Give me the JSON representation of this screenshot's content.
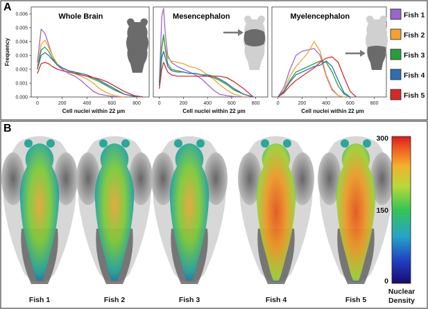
{
  "figure": {
    "panel_a_letter": "A",
    "panel_b_letter": "B",
    "legend": [
      {
        "label": "Fish 1",
        "color": "#9966cc"
      },
      {
        "label": "Fish 2",
        "color": "#f5a030"
      },
      {
        "label": "Fish 3",
        "color": "#2a9d3a"
      },
      {
        "label": "Fish 4",
        "color": "#2f6fb0"
      },
      {
        "label": "Fish 5",
        "color": "#d42a2a"
      }
    ],
    "fish_labels": [
      "Fish 1",
      "Fish 2",
      "Fish 3",
      "Fish 4",
      "Fish 5"
    ],
    "colorbar": {
      "ticks": [
        "300",
        "150",
        "0"
      ],
      "title_line1": "Nuclear",
      "title_line2": "Density",
      "icon": "colorbar-gradient"
    }
  },
  "chart_data": [
    {
      "type": "line",
      "title": "Whole Brain",
      "xlabel": "Cell nuclei within 22 µm",
      "ylabel": "Frequency",
      "xlim": [
        -50,
        900
      ],
      "ylim": [
        0,
        0.0065
      ],
      "xticks": [
        "0",
        "200",
        "400",
        "600",
        "800"
      ],
      "yticks": [
        "0.000",
        "0.001",
        "0.002",
        "0.003",
        "0.004",
        "0.005",
        "0.006"
      ],
      "xtick_values": [
        0,
        200,
        400,
        600,
        800
      ],
      "ytick_values": [
        0,
        0.001,
        0.002,
        0.003,
        0.004,
        0.005,
        0.006
      ],
      "series": [
        {
          "name": "Fish 1",
          "x": [
            0,
            30,
            60,
            90,
            120,
            160,
            200,
            250,
            300,
            350,
            400,
            450,
            500,
            560,
            620,
            700
          ],
          "y": [
            0.0025,
            0.0049,
            0.0046,
            0.0038,
            0.003,
            0.0023,
            0.002,
            0.0017,
            0.0015,
            0.0012,
            0.0008,
            0.0004,
            0.0002,
            0.0001,
            3e-05,
            0
          ]
        },
        {
          "name": "Fish 2",
          "x": [
            0,
            30,
            60,
            90,
            120,
            160,
            200,
            250,
            300,
            350,
            400,
            450,
            500,
            560,
            620,
            700
          ],
          "y": [
            0.0022,
            0.0038,
            0.0041,
            0.0036,
            0.003,
            0.0024,
            0.0021,
            0.0019,
            0.0017,
            0.0015,
            0.0013,
            0.001,
            0.0006,
            0.0003,
            0.0001,
            0
          ]
        },
        {
          "name": "Fish 3",
          "x": [
            0,
            30,
            60,
            90,
            120,
            160,
            200,
            250,
            300,
            350,
            400,
            450,
            500,
            560,
            620,
            700,
            780,
            850
          ],
          "y": [
            0.002,
            0.0034,
            0.0036,
            0.0033,
            0.0028,
            0.0023,
            0.0021,
            0.0019,
            0.0018,
            0.0016,
            0.0015,
            0.0013,
            0.0011,
            0.0008,
            0.0005,
            0.0002,
            5e-05,
            0
          ]
        },
        {
          "name": "Fish 4",
          "x": [
            0,
            30,
            60,
            90,
            120,
            160,
            200,
            250,
            300,
            350,
            400,
            450,
            500,
            560,
            620,
            700,
            780,
            850
          ],
          "y": [
            0.002,
            0.003,
            0.0032,
            0.003,
            0.0027,
            0.0023,
            0.0021,
            0.0019,
            0.0018,
            0.0017,
            0.0016,
            0.0014,
            0.0012,
            0.0009,
            0.0006,
            0.0002,
            5e-05,
            0
          ]
        },
        {
          "name": "Fish 5",
          "x": [
            0,
            30,
            60,
            90,
            120,
            160,
            200,
            250,
            300,
            350,
            400,
            450,
            500,
            560,
            620,
            700,
            780,
            850
          ],
          "y": [
            0.0017,
            0.0024,
            0.0025,
            0.0024,
            0.0022,
            0.002,
            0.0019,
            0.0018,
            0.0017,
            0.0016,
            0.0015,
            0.0014,
            0.0013,
            0.0011,
            0.0008,
            0.0004,
            0.0001,
            0
          ]
        }
      ]
    },
    {
      "type": "line",
      "title": "Mesencephalon",
      "xlabel": "Cell nuclei within 22 µm",
      "ylabel": "",
      "xlim": [
        -50,
        900
      ],
      "ylim": [
        0,
        0.0065
      ],
      "xticks": [
        "0",
        "200",
        "400",
        "600",
        "800"
      ],
      "yticks": [],
      "xtick_values": [
        0,
        200,
        400,
        600,
        800
      ],
      "ytick_values": [],
      "series": [
        {
          "name": "Fish 1",
          "x": [
            0,
            20,
            35,
            50,
            70,
            100,
            150,
            200,
            250,
            300,
            350,
            400,
            450,
            500,
            560,
            620,
            700
          ],
          "y": [
            0.001,
            0.0058,
            0.0064,
            0.0045,
            0.003,
            0.0025,
            0.0022,
            0.002,
            0.0018,
            0.0016,
            0.0013,
            0.0009,
            0.0005,
            0.0002,
            0.0001,
            3e-05,
            0
          ]
        },
        {
          "name": "Fish 2",
          "x": [
            0,
            20,
            35,
            50,
            70,
            100,
            150,
            200,
            250,
            300,
            350,
            400,
            450,
            500,
            560,
            620,
            700
          ],
          "y": [
            0.001,
            0.0035,
            0.0043,
            0.0036,
            0.0028,
            0.0026,
            0.0025,
            0.0024,
            0.0022,
            0.0021,
            0.0019,
            0.0016,
            0.0013,
            0.0009,
            0.0005,
            0.0002,
            0
          ]
        },
        {
          "name": "Fish 3",
          "x": [
            0,
            20,
            35,
            50,
            70,
            100,
            150,
            200,
            250,
            300,
            350,
            400,
            450,
            500,
            560,
            620,
            700,
            780
          ],
          "y": [
            0.001,
            0.0036,
            0.0045,
            0.0034,
            0.0024,
            0.002,
            0.0019,
            0.0018,
            0.0017,
            0.0017,
            0.0016,
            0.0015,
            0.0014,
            0.0012,
            0.0009,
            0.0005,
            0.0002,
            0
          ]
        },
        {
          "name": "Fish 4",
          "x": [
            0,
            20,
            35,
            50,
            70,
            100,
            150,
            200,
            250,
            300,
            350,
            400,
            450,
            500,
            560,
            620,
            700,
            780
          ],
          "y": [
            0.0008,
            0.0028,
            0.0033,
            0.0028,
            0.0022,
            0.0019,
            0.0018,
            0.0018,
            0.0017,
            0.0017,
            0.0016,
            0.0016,
            0.0015,
            0.0013,
            0.001,
            0.0006,
            0.0002,
            0
          ]
        },
        {
          "name": "Fish 5",
          "x": [
            0,
            20,
            35,
            50,
            70,
            100,
            150,
            200,
            250,
            300,
            350,
            400,
            450,
            500,
            560,
            620,
            700,
            780
          ],
          "y": [
            0.0006,
            0.002,
            0.0025,
            0.0022,
            0.0018,
            0.0016,
            0.0015,
            0.0015,
            0.0015,
            0.0015,
            0.0015,
            0.0015,
            0.0015,
            0.0015,
            0.0014,
            0.0011,
            0.0006,
            0
          ]
        }
      ]
    },
    {
      "type": "line",
      "title": "Myelencephalon",
      "xlabel": "Cell nuclei within 22 µm",
      "ylabel": "",
      "xlim": [
        -50,
        900
      ],
      "ylim": [
        0,
        0.0065
      ],
      "xticks": [
        "0",
        "200",
        "400",
        "600",
        "800"
      ],
      "yticks": [],
      "xtick_values": [
        0,
        200,
        400,
        600,
        800
      ],
      "ytick_values": [],
      "series": [
        {
          "name": "Fish 1",
          "x": [
            0,
            50,
            100,
            150,
            200,
            250,
            300,
            350,
            400,
            450,
            500,
            550
          ],
          "y": [
            0,
            0.0007,
            0.002,
            0.003,
            0.0033,
            0.0034,
            0.0035,
            0.003,
            0.0015,
            0.0005,
            0.0001,
            0
          ]
        },
        {
          "name": "Fish 2",
          "x": [
            0,
            50,
            100,
            150,
            200,
            250,
            300,
            350,
            400,
            450,
            500,
            550
          ],
          "y": [
            0,
            0.0005,
            0.0015,
            0.0022,
            0.0027,
            0.0032,
            0.004,
            0.0033,
            0.0016,
            0.0006,
            0.0001,
            0
          ]
        },
        {
          "name": "Fish 3",
          "x": [
            0,
            50,
            100,
            150,
            200,
            250,
            300,
            350,
            400,
            450,
            500,
            550,
            600
          ],
          "y": [
            0,
            0.0004,
            0.0012,
            0.0018,
            0.002,
            0.0022,
            0.0024,
            0.0026,
            0.0025,
            0.0018,
            0.0008,
            0.0002,
            0
          ]
        },
        {
          "name": "Fish 4",
          "x": [
            0,
            50,
            100,
            150,
            200,
            250,
            300,
            350,
            400,
            450,
            500,
            550,
            600
          ],
          "y": [
            0,
            0.0004,
            0.0011,
            0.0016,
            0.0018,
            0.002,
            0.0022,
            0.0023,
            0.0026,
            0.0022,
            0.0012,
            0.0003,
            0
          ]
        },
        {
          "name": "Fish 5",
          "x": [
            0,
            50,
            100,
            150,
            200,
            250,
            300,
            350,
            400,
            450,
            500,
            550,
            600,
            650
          ],
          "y": [
            0,
            0.0003,
            0.0008,
            0.0012,
            0.0015,
            0.0018,
            0.0021,
            0.0025,
            0.0028,
            0.0029,
            0.0025,
            0.0014,
            0.0004,
            0
          ]
        }
      ]
    }
  ]
}
